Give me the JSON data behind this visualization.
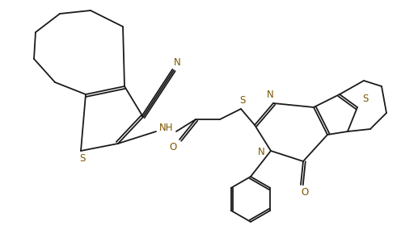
{
  "bg_color": "#ffffff",
  "line_color": "#1a1a1a",
  "atom_color": "#7B5800",
  "figsize": [
    4.96,
    3.05
  ],
  "dpi": 100,
  "xlim": [
    0,
    4.96
  ],
  "ylim": [
    0,
    3.05
  ]
}
